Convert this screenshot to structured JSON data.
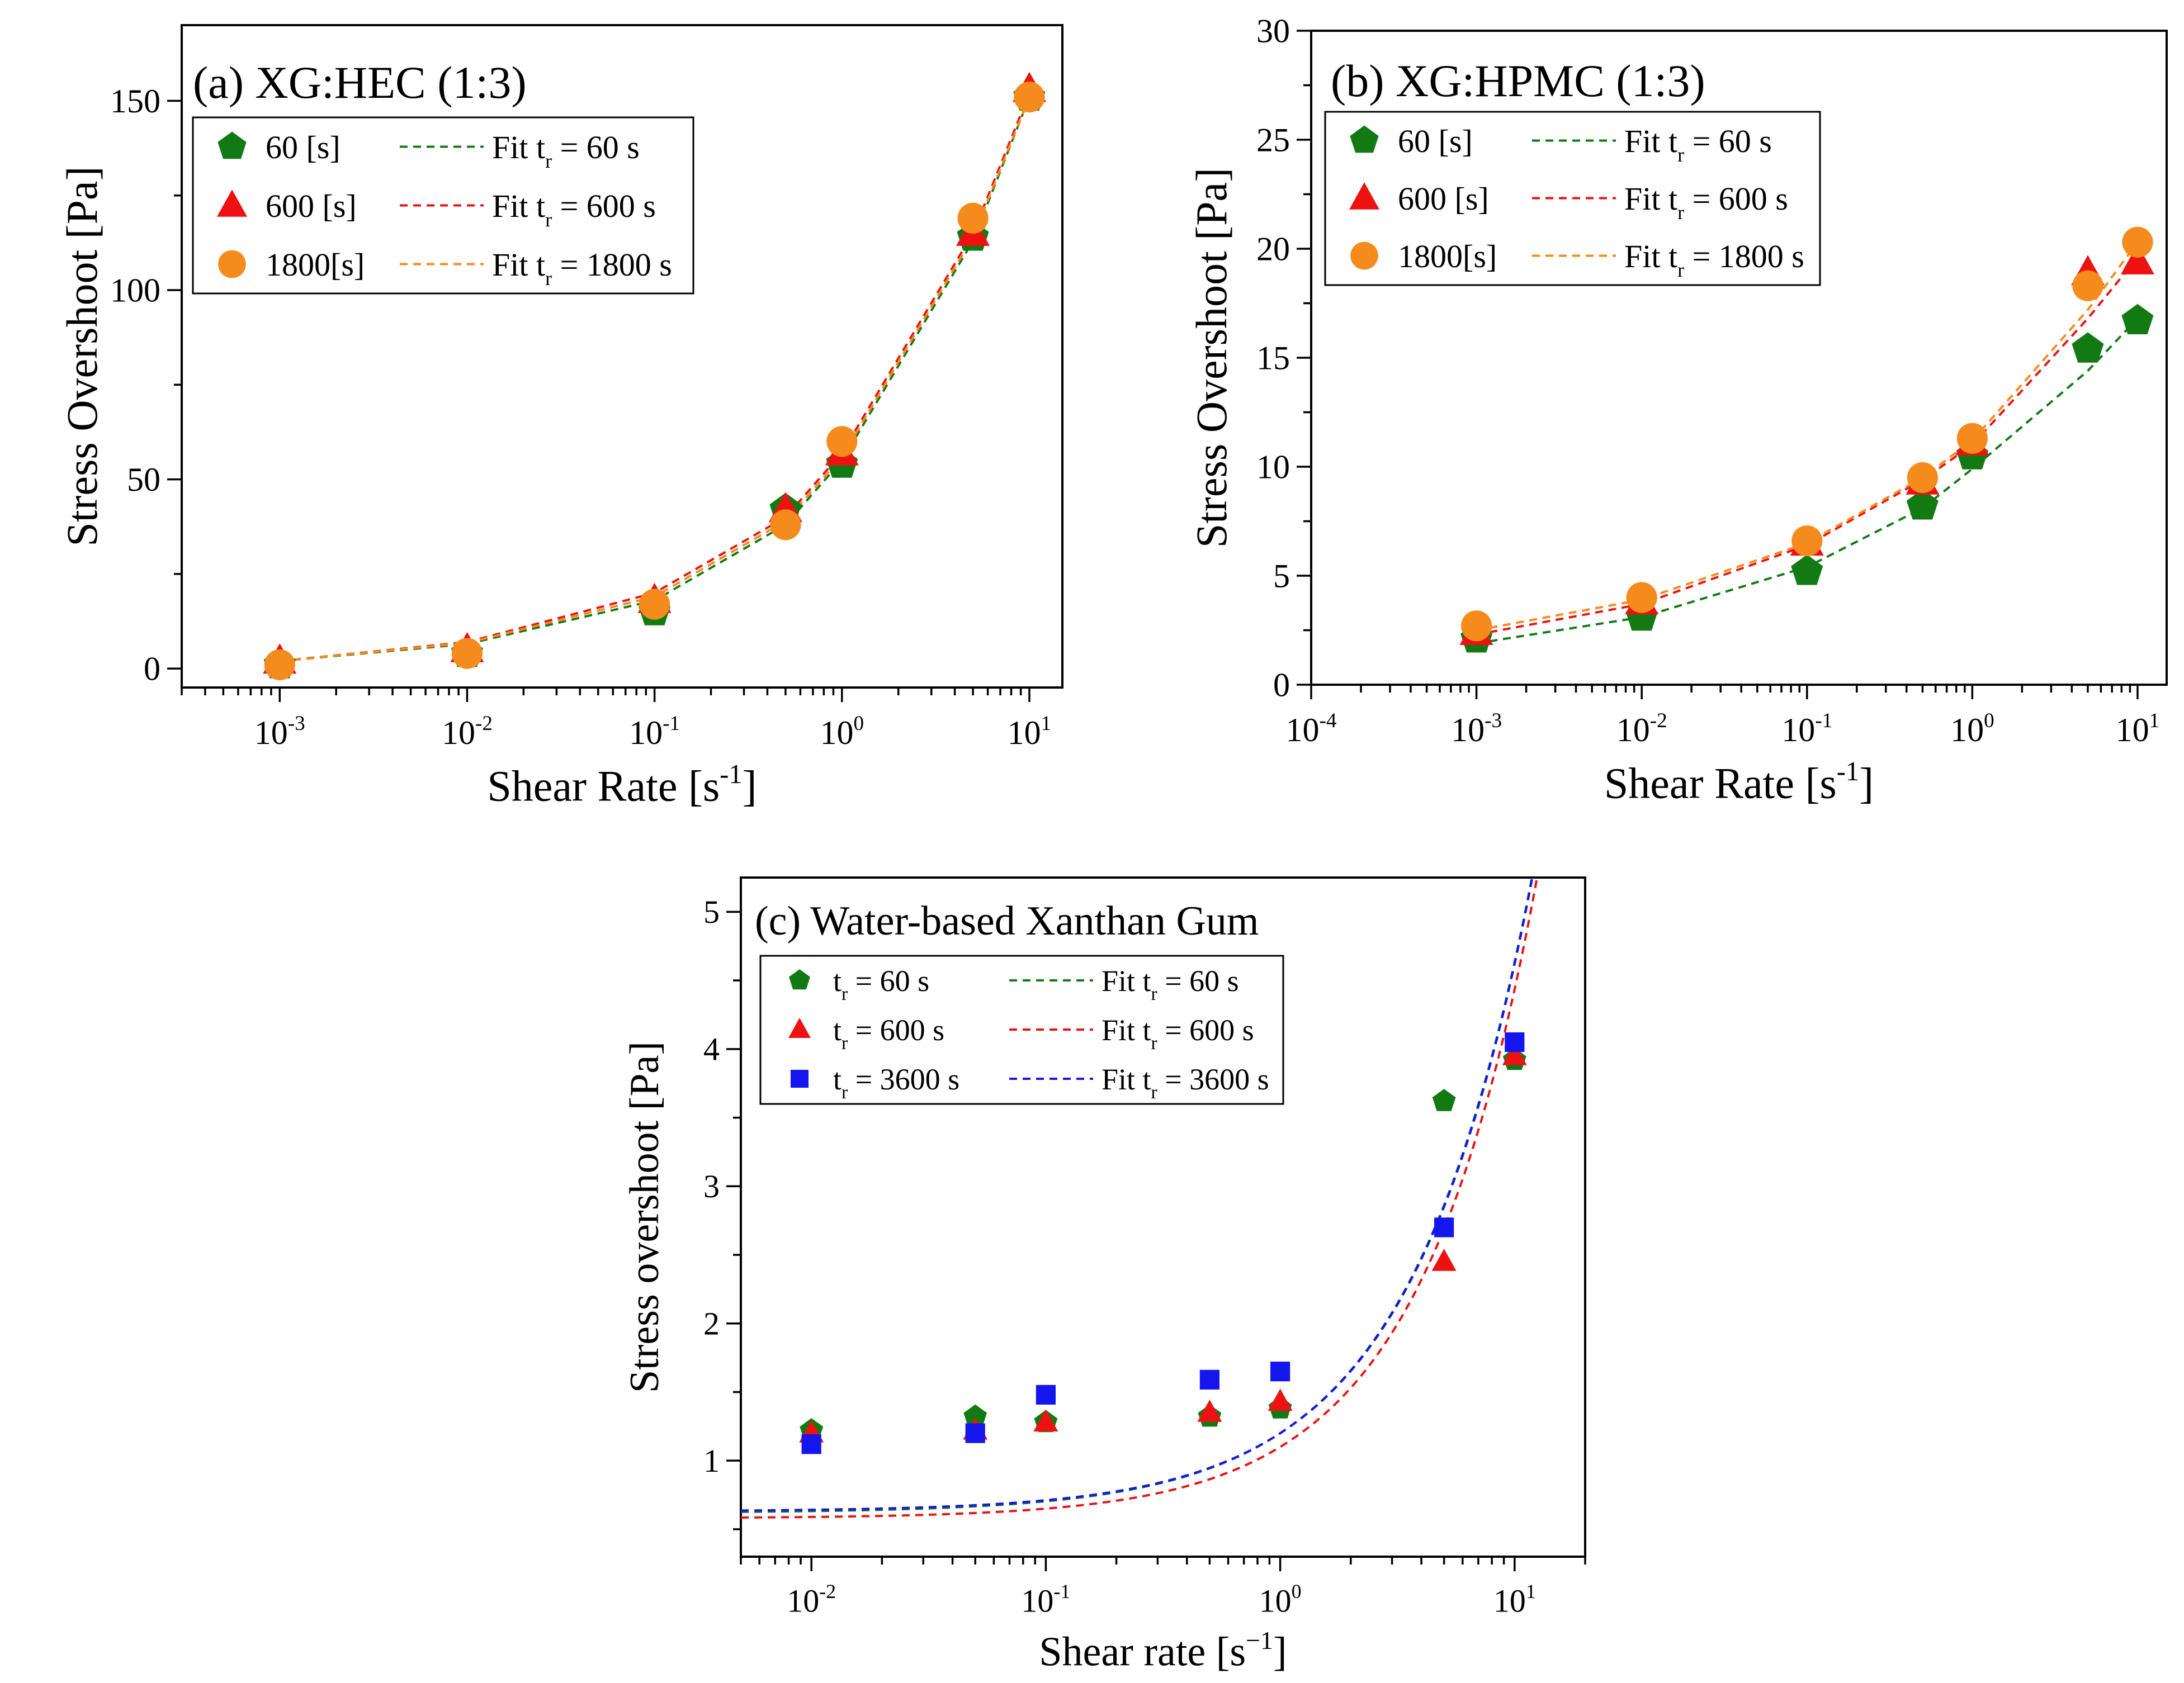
{
  "chart_data": [
    {
      "type": "scatter",
      "panel_title": "(a) XG:HEC (1:3)",
      "xlabel": "Shear Rate [s",
      "xlabel_sup": "-1",
      "xlabel_tail": "]",
      "ylabel": "Stress Overshoot [Pa]",
      "xscale": "log",
      "xlim": [
        0.0003,
        15
      ],
      "ylim": [
        -5,
        170
      ],
      "xticks": [
        {
          "base": "10",
          "exp": "-3"
        },
        {
          "base": "10",
          "exp": "-2"
        },
        {
          "base": "10",
          "exp": "-1"
        },
        {
          "base": "10",
          "exp": "0"
        },
        {
          "base": "10",
          "exp": "1"
        }
      ],
      "xtick_values": [
        0.001,
        0.01,
        0.1,
        1,
        10
      ],
      "yticks": [
        "0",
        "50",
        "100",
        "150"
      ],
      "ytick_values": [
        0,
        50,
        100,
        150
      ],
      "x": [
        0.001,
        0.01,
        0.1,
        0.5,
        1,
        5,
        10
      ],
      "series": [
        {
          "name": "60 [s]",
          "marker": "pentagon",
          "color": "#137a13",
          "values": [
            1,
            4,
            15,
            42,
            54,
            114,
            151
          ]
        },
        {
          "name": "600 [s]",
          "marker": "triangle",
          "color": "#ee1111",
          "values": [
            2,
            5,
            18,
            42,
            57,
            115,
            153
          ]
        },
        {
          "name": "1800[s]",
          "marker": "circle",
          "color": "#f58b1c",
          "values": [
            1,
            4,
            17,
            38,
            60,
            119,
            151
          ]
        }
      ],
      "fits": [
        {
          "name": "Fit t",
          "sub": "r",
          "tail": " = 60 s",
          "color": "#137a13",
          "values": [
            2,
            6.5,
            18,
            38,
            55,
            113,
            151
          ]
        },
        {
          "name": "Fit t",
          "sub": "r",
          "tail": " = 600 s",
          "color": "#ee1111",
          "values": [
            2,
            7,
            20,
            40,
            57,
            115,
            152
          ]
        },
        {
          "name": "Fit t",
          "sub": "r",
          "tail": " = 1800 s",
          "color": "#f58b1c",
          "values": [
            2,
            6.8,
            19,
            39,
            56,
            114,
            151
          ]
        }
      ]
    },
    {
      "type": "scatter",
      "panel_title": "(b) XG:HPMC (1:3)",
      "xlabel": "Shear Rate [s",
      "xlabel_sup": "-1",
      "xlabel_tail": "]",
      "ylabel": "Stress Overshoot [Pa]",
      "xscale": "log",
      "xlim": [
        0.0001,
        15
      ],
      "ylim": [
        0,
        30
      ],
      "xticks": [
        {
          "base": "10",
          "exp": "-4"
        },
        {
          "base": "10",
          "exp": "-3"
        },
        {
          "base": "10",
          "exp": "-2"
        },
        {
          "base": "10",
          "exp": "-1"
        },
        {
          "base": "10",
          "exp": "0"
        },
        {
          "base": "10",
          "exp": "1"
        }
      ],
      "xtick_values": [
        0.0001,
        0.001,
        0.01,
        0.1,
        1,
        10
      ],
      "yticks": [
        "0",
        "5",
        "10",
        "15",
        "20",
        "25",
        "30"
      ],
      "ytick_values": [
        0,
        5,
        10,
        15,
        20,
        25,
        30
      ],
      "x": [
        0.001,
        0.01,
        0.1,
        0.5,
        1,
        5,
        10
      ],
      "series": [
        {
          "name": "60 [s]",
          "marker": "pentagon",
          "color": "#137a13",
          "values": [
            2.1,
            3.1,
            5.2,
            8.2,
            10.5,
            15.4,
            16.7
          ]
        },
        {
          "name": "600 [s]",
          "marker": "triangle",
          "color": "#ee1111",
          "values": [
            2.4,
            3.8,
            6.5,
            9.3,
            11.1,
            18.9,
            19.4
          ]
        },
        {
          "name": "1800[s]",
          "marker": "circle",
          "color": "#f58b1c",
          "values": [
            2.7,
            4.0,
            6.6,
            9.5,
            11.3,
            18.3,
            20.3
          ]
        }
      ],
      "fits": [
        {
          "name": "Fit t",
          "sub": "r",
          "tail": " = 60 s",
          "color": "#137a13",
          "values": [
            1.9,
            3.1,
            5.4,
            8.1,
            9.9,
            14.4,
            16.8
          ]
        },
        {
          "name": "Fit t",
          "sub": "r",
          "tail": " = 600 s",
          "color": "#ee1111",
          "values": [
            2.3,
            3.7,
            6.4,
            9.4,
            11.0,
            16.8,
            19.6
          ]
        },
        {
          "name": "Fit t",
          "sub": "r",
          "tail": " = 1800 s",
          "color": "#f58b1c",
          "values": [
            2.5,
            3.9,
            6.5,
            9.5,
            11.2,
            17.2,
            20.3
          ]
        }
      ]
    },
    {
      "type": "scatter",
      "panel_title": "(c) Water-based Xanthan Gum",
      "xlabel": "Shear rate [s",
      "xlabel_sup": "−1",
      "xlabel_tail": "]",
      "ylabel": "Stress overshoot  [Pa]",
      "xscale": "log",
      "xlim": [
        0.005,
        20
      ],
      "ylim": [
        0.3,
        5.25
      ],
      "xticks": [
        {
          "base": "10",
          "exp": "-2"
        },
        {
          "base": "10",
          "exp": "-1"
        },
        {
          "base": "10",
          "exp": "0"
        },
        {
          "base": "10",
          "exp": "1"
        }
      ],
      "xtick_values": [
        0.01,
        0.1,
        1,
        10
      ],
      "yticks": [
        "1",
        "2",
        "3",
        "4",
        "5"
      ],
      "ytick_values": [
        1,
        2,
        3,
        4,
        5
      ],
      "x": [
        0.01,
        0.05,
        0.1,
        0.5,
        1,
        5,
        10
      ],
      "series": [
        {
          "name": "t",
          "sub": "r",
          "tail": " = 60 s",
          "marker": "pentagon",
          "color": "#137a13",
          "values": [
            1.22,
            1.32,
            1.28,
            1.32,
            1.38,
            3.62,
            3.92
          ]
        },
        {
          "name": "t",
          "sub": "r",
          "tail": " = 600 s",
          "marker": "triangle",
          "color": "#ee1111",
          "values": [
            1.2,
            1.22,
            1.28,
            1.35,
            1.43,
            2.45,
            3.95
          ]
        },
        {
          "name": "t",
          "sub": "r",
          "tail": " = 3600 s",
          "marker": "square",
          "color": "#1515ee",
          "values": [
            1.12,
            1.2,
            1.48,
            1.59,
            1.65,
            2.7,
            4.05
          ]
        }
      ],
      "fit_model": {
        "form": "a + b*x^n",
        "note": "dashed fit curves drawn from this model"
      },
      "fits": [
        {
          "name": "Fit t",
          "sub": "r",
          "tail": " = 60 s",
          "color": "#137a13",
          "a": 0.62,
          "b": 0.58,
          "n": 0.84
        },
        {
          "name": "Fit t",
          "sub": "r",
          "tail": " = 600 s",
          "color": "#ee1111",
          "a": 0.58,
          "b": 0.52,
          "n": 0.87
        },
        {
          "name": "Fit t",
          "sub": "r",
          "tail": " = 3600 s",
          "color": "#1515ee",
          "a": 0.63,
          "b": 0.57,
          "n": 0.845
        }
      ]
    }
  ]
}
